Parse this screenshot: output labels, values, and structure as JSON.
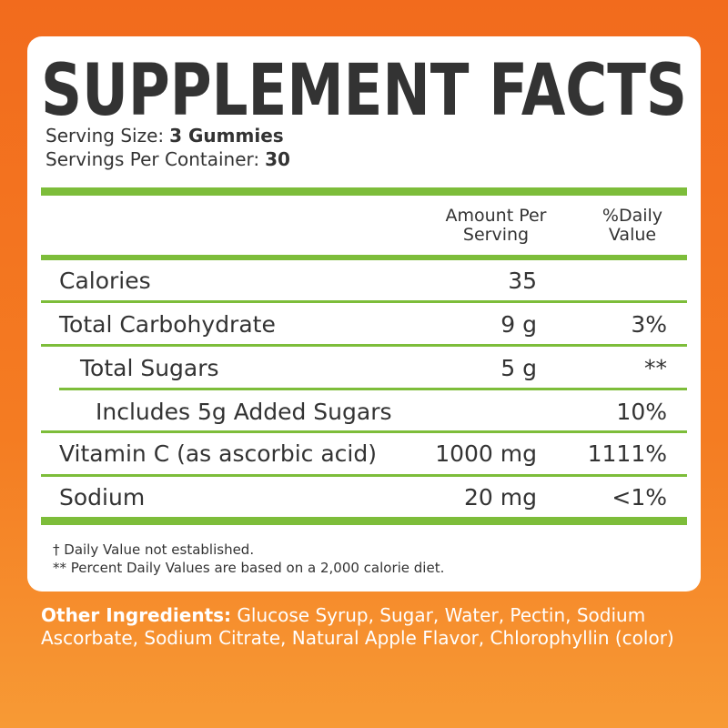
{
  "title": "SUPPLEMENT FACTS",
  "serving": [
    {
      "label": "Serving Size:",
      "value": "3 Gummies"
    },
    {
      "label": "Servings Per Container:",
      "value": "30"
    }
  ],
  "table": {
    "header": [
      "Amount Per Serving",
      "%Daily Value"
    ],
    "rows": [
      {
        "name": "Calories",
        "amount": "35"
      },
      {
        "name": "Total Carbohydrate",
        "amount": "9 g",
        "daily_value": "3%"
      },
      {
        "name": "Total Sugars",
        "amount": "5 g",
        "daily_value": "**"
      },
      {
        "name": "Includes 5g Added Sugars",
        "daily_value": "10%"
      },
      {
        "name": "Vitamin C (as ascorbic acid)",
        "amount": "1000 mg",
        "daily_value": "1111%"
      },
      {
        "name": "Sodium",
        "amount": "20 mg",
        "daily_value": "<1%"
      }
    ]
  },
  "footnotes": [
    "† Daily Value not established.",
    "** Percent Daily Values are based on a 2,000 calorie diet."
  ],
  "other_ingredients": {
    "label": "Other Ingredients:",
    "text": "Glucose Syrup, Sugar, Water, Pectin, Sodium Ascorbate, Sodium Citrate, Natural Apple Flavor, Chlorophyllin (color)"
  }
}
